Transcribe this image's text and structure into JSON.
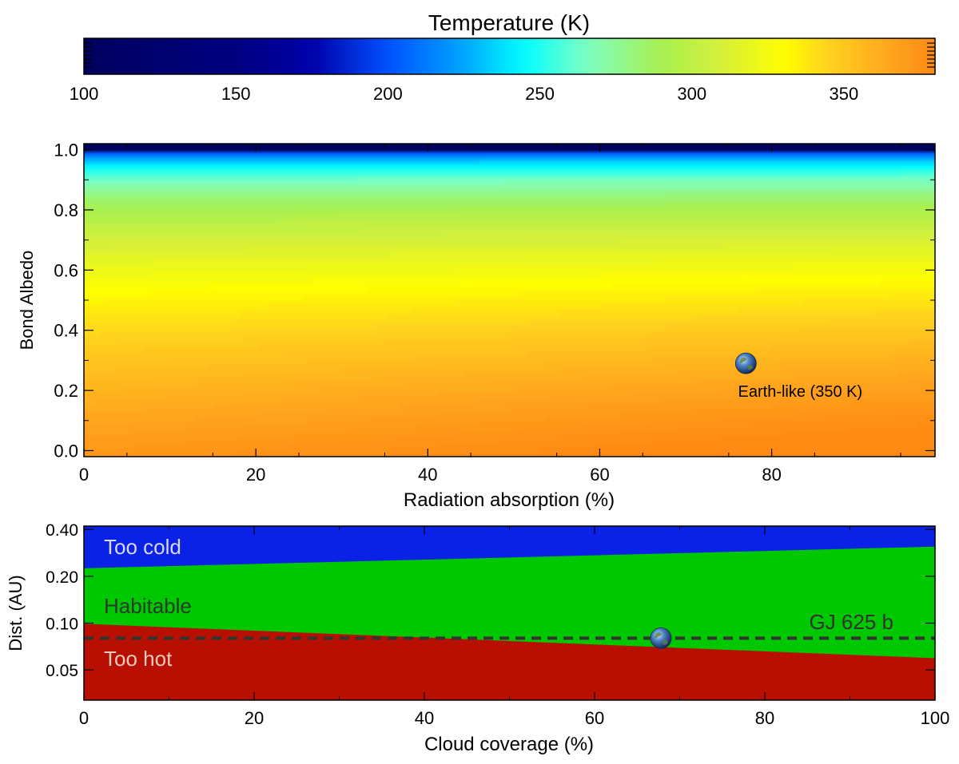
{
  "chart_data": [
    {
      "type": "colorbar",
      "title": "Temperature (K)",
      "range": [
        100,
        380
      ],
      "ticks": [
        100,
        150,
        200,
        250,
        300,
        350
      ],
      "tick_labels": [
        "100",
        "150",
        "200",
        "250",
        "300",
        "350"
      ],
      "colormap": [
        {
          "value": 100,
          "color": "#00005e"
        },
        {
          "value": 150,
          "color": "#000080"
        },
        {
          "value": 175,
          "color": "#0000a8"
        },
        {
          "value": 200,
          "color": "#0050ff"
        },
        {
          "value": 225,
          "color": "#00a6ff"
        },
        {
          "value": 245,
          "color": "#00ffff"
        },
        {
          "value": 265,
          "color": "#7dffc4"
        },
        {
          "value": 290,
          "color": "#a8f050"
        },
        {
          "value": 310,
          "color": "#d6f03a"
        },
        {
          "value": 330,
          "color": "#ffff00"
        },
        {
          "value": 345,
          "color": "#ffd21e"
        },
        {
          "value": 365,
          "color": "#ffa61e"
        },
        {
          "value": 380,
          "color": "#ff8a14"
        }
      ]
    },
    {
      "type": "heatmap",
      "xlabel": "Radiation absorption (%)",
      "ylabel": "Bond Albedo",
      "xlim": [
        0,
        99
      ],
      "ylim": [
        -0.02,
        1.02
      ],
      "xticks": [
        0,
        20,
        40,
        60,
        80
      ],
      "xtick_labels": [
        "0",
        "20",
        "40",
        "60",
        "80"
      ],
      "yticks": [
        0.0,
        0.2,
        0.4,
        0.6,
        0.8,
        1.0
      ],
      "ytick_labels": [
        "0.0",
        "0.2",
        "0.4",
        "0.6",
        "0.8",
        "1.0"
      ],
      "marker": {
        "x": 77,
        "y": 0.29,
        "label": "Earth-like (350 K)",
        "icon": "earth-globe-icon"
      }
    },
    {
      "type": "area",
      "xlabel": "Cloud coverage (%)",
      "ylabel": "Dist. (AU)",
      "yscale": "log",
      "xlim": [
        0,
        100
      ],
      "ylim": [
        0.032,
        0.42
      ],
      "xticks": [
        0,
        20,
        40,
        60,
        80,
        100
      ],
      "xtick_labels": [
        "0",
        "20",
        "40",
        "60",
        "80",
        "100"
      ],
      "yticks": [
        0.05,
        0.1,
        0.2,
        0.4
      ],
      "ytick_labels": [
        "0.05",
        "0.10",
        "0.20",
        "0.40"
      ],
      "regions": [
        {
          "label": "Too cold",
          "color": "#0a22e6",
          "lower_boundary": [
            [
              0,
              0.225
            ],
            [
              100,
              0.31
            ]
          ]
        },
        {
          "label": "Habitable",
          "color": "#00c800"
        },
        {
          "label": "Too hot",
          "color": "#b81000",
          "upper_boundary": [
            [
              0,
              0.099
            ],
            [
              100,
              0.0595
            ]
          ]
        }
      ],
      "reference_line": {
        "label": "GJ 625 b",
        "y": 0.08,
        "style": "dashed",
        "color": "#333333"
      },
      "marker": {
        "x": 67.8,
        "y": 0.08,
        "icon": "earth-globe-icon"
      }
    }
  ]
}
